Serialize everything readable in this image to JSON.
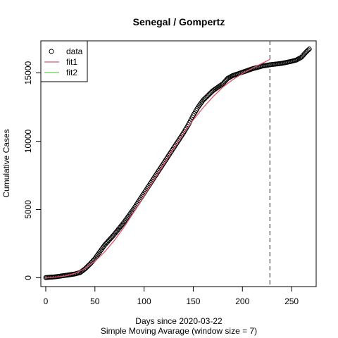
{
  "chart_data": {
    "type": "scatter",
    "title": "Senegal / Gompertz",
    "xlabel": "Days since 2020-03-22",
    "xlabel2": "Simple Moving Avarage (window size = 7)",
    "ylabel": "Cumulative Cases",
    "xlim": [
      -5,
      275
    ],
    "ylim": [
      -650,
      17350
    ],
    "xticks": [
      0,
      50,
      100,
      150,
      200,
      250
    ],
    "yticks": [
      0,
      5000,
      10000,
      15000
    ],
    "vline_x": 228,
    "legend_position": "top-left",
    "legend": [
      {
        "label": "data",
        "marker": "circle",
        "color": "#000000"
      },
      {
        "label": "fit1",
        "marker": "line",
        "color": "#df536b"
      },
      {
        "label": "fit2",
        "marker": "line",
        "color": "#61d04f"
      }
    ],
    "series": [
      {
        "name": "data",
        "style": "points",
        "color": "#000000",
        "points": [
          [
            0,
            10
          ],
          [
            10,
            70
          ],
          [
            20,
            170
          ],
          [
            30,
            280
          ],
          [
            35,
            380
          ],
          [
            40,
            650
          ],
          [
            45,
            1000
          ],
          [
            50,
            1400
          ],
          [
            55,
            1900
          ],
          [
            60,
            2400
          ],
          [
            65,
            2800
          ],
          [
            70,
            3200
          ],
          [
            75,
            3650
          ],
          [
            80,
            4100
          ],
          [
            90,
            5100
          ],
          [
            100,
            6200
          ],
          [
            110,
            7300
          ],
          [
            120,
            8400
          ],
          [
            130,
            9500
          ],
          [
            140,
            10600
          ],
          [
            145,
            11200
          ],
          [
            150,
            11900
          ],
          [
            155,
            12500
          ],
          [
            160,
            13000
          ],
          [
            170,
            13700
          ],
          [
            180,
            14200
          ],
          [
            185,
            14600
          ],
          [
            190,
            14800
          ],
          [
            200,
            15050
          ],
          [
            210,
            15300
          ],
          [
            220,
            15500
          ],
          [
            228,
            15600
          ],
          [
            240,
            15700
          ],
          [
            250,
            15850
          ],
          [
            255,
            15950
          ],
          [
            260,
            16150
          ],
          [
            265,
            16550
          ],
          [
            268,
            16750
          ]
        ]
      },
      {
        "name": "fit1",
        "style": "line",
        "color": "#df536b",
        "points": [
          [
            0,
            0
          ],
          [
            10,
            40
          ],
          [
            20,
            130
          ],
          [
            30,
            330
          ],
          [
            40,
            680
          ],
          [
            50,
            1200
          ],
          [
            60,
            1900
          ],
          [
            70,
            2750
          ],
          [
            80,
            3750
          ],
          [
            90,
            4850
          ],
          [
            100,
            6000
          ],
          [
            110,
            7150
          ],
          [
            120,
            8300
          ],
          [
            130,
            9450
          ],
          [
            140,
            10550
          ],
          [
            150,
            11550
          ],
          [
            160,
            12450
          ],
          [
            170,
            13250
          ],
          [
            180,
            13950
          ],
          [
            190,
            14500
          ],
          [
            200,
            14950
          ],
          [
            210,
            15350
          ],
          [
            220,
            15700
          ],
          [
            228,
            16000
          ]
        ]
      }
    ]
  }
}
